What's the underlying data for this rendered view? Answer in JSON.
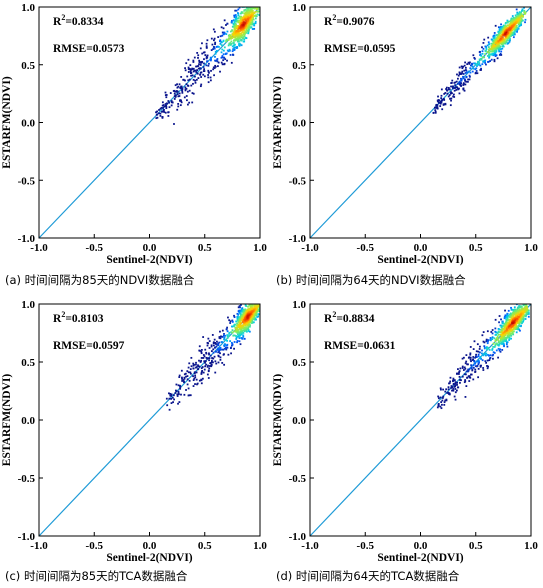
{
  "chart_data": [
    {
      "type": "scatter",
      "subtype": "density-scatter-heatmap",
      "caption": "(a) 时间间隔为85天的NDVI数据融合",
      "xlabel": "Sentinel-2(NDVI)",
      "ylabel": "ESTARFM(NDVI)",
      "xlim": [
        -1.0,
        1.0
      ],
      "ylim": [
        -1.0,
        1.0
      ],
      "xticks": [
        "-1.0",
        "-0.5",
        "0.0",
        "0.5",
        "1.0"
      ],
      "yticks": [
        "-1.0",
        "-0.5",
        "0.0",
        "0.5",
        "1.0"
      ],
      "annotations": [
        {
          "label": "R",
          "sup": "2",
          "value": "=0.8334"
        },
        {
          "label": "RMSE",
          "value": "=0.0573"
        }
      ],
      "reference_line": {
        "from": [
          -1.0,
          -1.0
        ],
        "to": [
          1.0,
          1.0
        ],
        "color": "#1f9bd7"
      },
      "density_range": {
        "x": [
          0.05,
          1.0
        ],
        "core": [
          0.75,
          0.95
        ],
        "spread": 0.14
      }
    },
    {
      "type": "scatter",
      "subtype": "density-scatter-heatmap",
      "caption": "(b) 时间间隔为64天的NDVI数据融合",
      "xlabel": "Sentinel-2(NDVI)",
      "ylabel": "ESTARFM(NDVI)",
      "xlim": [
        -1.0,
        1.0
      ],
      "ylim": [
        -1.0,
        1.0
      ],
      "xticks": [
        "-1.0",
        "-0.5",
        "0.0",
        "0.5",
        "1.0"
      ],
      "yticks": [
        "-1.0",
        "-0.5",
        "0.0",
        "0.5",
        "1.0"
      ],
      "annotations": [
        {
          "label": "R",
          "sup": "2",
          "value": "=0.9076"
        },
        {
          "label": "RMSE",
          "value": "=0.0595"
        }
      ],
      "reference_line": {
        "from": [
          -1.0,
          -1.0
        ],
        "to": [
          1.0,
          1.0
        ],
        "color": "#1f9bd7"
      },
      "density_range": {
        "x": [
          0.1,
          0.95
        ],
        "core": [
          0.65,
          0.9
        ],
        "spread": 0.09
      }
    },
    {
      "type": "scatter",
      "subtype": "density-scatter-heatmap",
      "caption": "(c) 时间间隔为85天的TCA数据融合",
      "xlabel": "Sentinel-2(NDVI)",
      "ylabel": "ESTARFM(NDVI)",
      "xlim": [
        -1.0,
        1.0
      ],
      "ylim": [
        -1.0,
        1.0
      ],
      "xticks": [
        "-1.0",
        "-0.5",
        "0.0",
        "0.5",
        "1.0"
      ],
      "yticks": [
        "-1.0",
        "-0.5",
        "0.0",
        "0.5",
        "1.0"
      ],
      "annotations": [
        {
          "label": "R",
          "sup": "2",
          "value": "=0.8103"
        },
        {
          "label": "RMSE",
          "value": "=0.0597"
        }
      ],
      "reference_line": {
        "from": [
          -1.0,
          -1.0
        ],
        "to": [
          1.0,
          1.0
        ],
        "color": "#1f9bd7"
      },
      "density_range": {
        "x": [
          0.15,
          1.0
        ],
        "core": [
          0.8,
          0.98
        ],
        "spread": 0.12
      }
    },
    {
      "type": "scatter",
      "subtype": "density-scatter-heatmap",
      "caption": "(d) 时间间隔为64天的TCA数据融合",
      "xlabel": "Sentinel-2(NDVI)",
      "ylabel": "ESTARFM(NDVI)",
      "xlim": [
        -1.0,
        1.0
      ],
      "ylim": [
        -1.0,
        1.0
      ],
      "xticks": [
        "-1.0",
        "-0.5",
        "0.0",
        "0.5",
        "1.0"
      ],
      "yticks": [
        "-1.0",
        "-0.5",
        "0.0",
        "0.5",
        "1.0"
      ],
      "annotations": [
        {
          "label": "R",
          "sup": "2",
          "value": "=0.8834"
        },
        {
          "label": "RMSE",
          "value": "=0.0631"
        }
      ],
      "reference_line": {
        "from": [
          -1.0,
          -1.0
        ],
        "to": [
          1.0,
          1.0
        ],
        "color": "#1f9bd7"
      },
      "density_range": {
        "x": [
          0.15,
          0.98
        ],
        "core": [
          0.72,
          0.95
        ],
        "spread": 0.11
      }
    }
  ]
}
